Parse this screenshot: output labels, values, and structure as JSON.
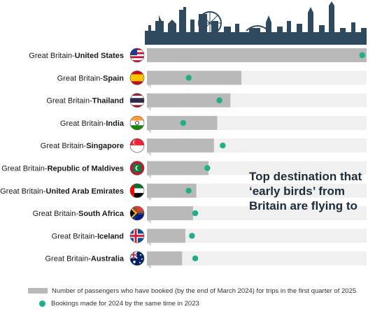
{
  "chart_data": {
    "type": "bar",
    "orientation": "horizontal",
    "title": "Top destination that\n‘early birds’ from\nBritain are flying to",
    "categories": [
      {
        "prefix": "Great Britain-",
        "name": "United States",
        "flag": "us-flag"
      },
      {
        "prefix": "Great Britain-",
        "name": "Spain",
        "flag": "spain-flag"
      },
      {
        "prefix": "Great Britain-",
        "name": "Thailand",
        "flag": "thailand-flag"
      },
      {
        "prefix": "Great Britain-",
        "name": "India",
        "flag": "india-flag"
      },
      {
        "prefix": "Great Britain-",
        "name": "Singapore",
        "flag": "singapore-flag"
      },
      {
        "prefix": "Great Britain-",
        "name": "Republic of Maldives",
        "flag": "maldives-flag"
      },
      {
        "prefix": "Great Britain-",
        "name": "United Arab Emirates",
        "flag": "uae-flag"
      },
      {
        "prefix": "Great Britain-",
        "name": "South Africa",
        "flag": "south-africa-flag"
      },
      {
        "prefix": "Great Britain-",
        "name": "Iceland",
        "flag": "iceland-flag"
      },
      {
        "prefix": "Great Britain-",
        "name": "Australia",
        "flag": "australia-flag"
      }
    ],
    "series": [
      {
        "name": "Number of passengers who have booked (by the end of March 2024) for trips in the first quarter of 2025",
        "marker": "bar",
        "color": "#b9b9b9",
        "values": [
          100,
          43,
          38,
          32,
          30.5,
          28,
          22.5,
          21,
          17.5,
          16
        ]
      },
      {
        "name": "Bookings made for 2024 by the same time in 2023",
        "marker": "dot",
        "color": "#1fae8a",
        "values": [
          98,
          19,
          33,
          16.5,
          34.5,
          27.5,
          19,
          22,
          20.5,
          22
        ]
      }
    ],
    "xlim": [
      0,
      100
    ],
    "value_scale": "relative",
    "grid": false,
    "legend_position": "bottom-left"
  },
  "colors": {
    "bar": "#b9b9b9",
    "dot": "#1fae8a",
    "track": "#f0f0f0",
    "skyline": "#2f4a5e",
    "title": "#1e2c3a"
  }
}
